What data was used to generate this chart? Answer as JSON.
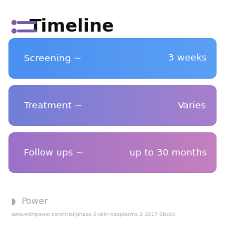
{
  "title": "Timeline",
  "title_icon_color": "#7B5EA7",
  "title_fontsize": 18,
  "title_fontweight": "bold",
  "background_color": "#ffffff",
  "rows": [
    {
      "label": "Screening ~",
      "value": "3 weeks",
      "color_left": "#4B8FF0",
      "color_right": "#5BA0F5"
    },
    {
      "label": "Treatment ~",
      "value": "Varies",
      "color_left": "#7080D8",
      "color_right": "#A87FCC"
    },
    {
      "label": "Follow ups ~",
      "value": "up to 30 months",
      "color_left": "#9B72C8",
      "color_right": "#C480BE"
    }
  ],
  "footer_logo_text": "Power",
  "footer_url": "www.withpower.com/trial/phase-3-skin-neoplasms-2-2017-9bcb3",
  "footer_color": "#aaaaaa",
  "text_color": "#ffffff",
  "label_fontsize": 9.5,
  "value_fontsize": 9.5
}
